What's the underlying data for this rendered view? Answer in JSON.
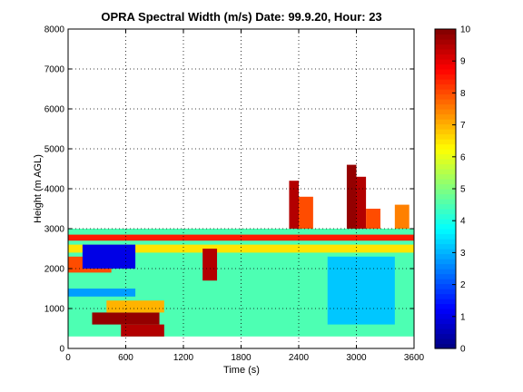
{
  "chart_data": {
    "type": "heatmap",
    "title": "OPRA Spectral Width (m/s)  Date: 99.9.20, Hour: 23",
    "xlabel": "Time (s)",
    "ylabel": "Height (m AGL)",
    "xlim": [
      0,
      3600
    ],
    "ylim": [
      0,
      8000
    ],
    "xticks": [
      "0",
      "600",
      "1200",
      "1800",
      "2400",
      "3000",
      "3600"
    ],
    "yticks": [
      "0",
      "1000",
      "2000",
      "3000",
      "4000",
      "5000",
      "6000",
      "7000",
      "8000"
    ],
    "grid": true,
    "colorbar": {
      "colormap": "jet",
      "range": [
        0,
        10
      ],
      "ticks": [
        "0",
        "1",
        "2",
        "3",
        "4",
        "5",
        "6",
        "7",
        "8",
        "9",
        "10"
      ]
    },
    "regions": [
      {
        "x": [
          0,
          3600
        ],
        "y": [
          300,
          3000
        ],
        "value": 4.5
      },
      {
        "x": [
          0,
          3600
        ],
        "y": [
          2700,
          2850
        ],
        "value": 8.5
      },
      {
        "x": [
          0,
          3600
        ],
        "y": [
          2400,
          2600
        ],
        "value": 6.5
      },
      {
        "x": [
          0,
          450
        ],
        "y": [
          1900,
          2300
        ],
        "value": 8.0
      },
      {
        "x": [
          150,
          700
        ],
        "y": [
          2000,
          2600
        ],
        "value": 1.0
      },
      {
        "x": [
          0,
          700
        ],
        "y": [
          1300,
          1500
        ],
        "value": 2.8
      },
      {
        "x": [
          250,
          950
        ],
        "y": [
          600,
          900
        ],
        "value": 9.8
      },
      {
        "x": [
          550,
          1000
        ],
        "y": [
          300,
          600
        ],
        "value": 9.5
      },
      {
        "x": [
          400,
          1000
        ],
        "y": [
          900,
          1200
        ],
        "value": 7.0
      },
      {
        "x": [
          1400,
          1550
        ],
        "y": [
          1700,
          2500
        ],
        "value": 9.5
      },
      {
        "x": [
          2300,
          2400
        ],
        "y": [
          3000,
          4200
        ],
        "value": 9.5
      },
      {
        "x": [
          2400,
          2550
        ],
        "y": [
          3000,
          3800
        ],
        "value": 8.0
      },
      {
        "x": [
          2900,
          3000
        ],
        "y": [
          3000,
          4600
        ],
        "value": 9.8
      },
      {
        "x": [
          3000,
          3100
        ],
        "y": [
          3000,
          4300
        ],
        "value": 9.5
      },
      {
        "x": [
          3100,
          3250
        ],
        "y": [
          3000,
          3500
        ],
        "value": 8.0
      },
      {
        "x": [
          3400,
          3550
        ],
        "y": [
          3000,
          3600
        ],
        "value": 7.5
      },
      {
        "x": [
          2700,
          3400
        ],
        "y": [
          600,
          2300
        ],
        "value": 3.2
      }
    ]
  }
}
